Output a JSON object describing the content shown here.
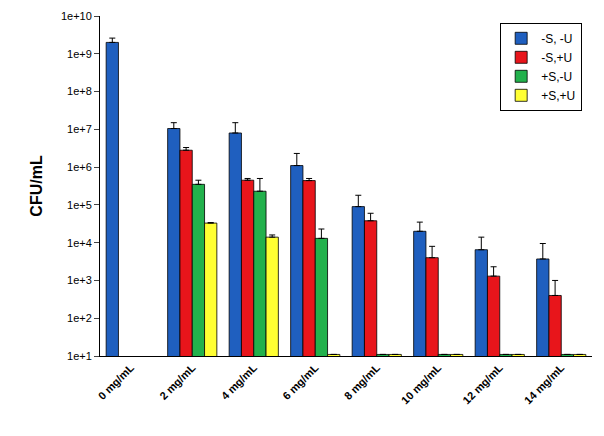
{
  "chart_data": {
    "type": "bar",
    "y_label": "CFU/mL",
    "categories": [
      "0 mg/mL",
      "2 mg/mL",
      "4 mg/mL",
      "6 mg/mL",
      "8 mg/mL",
      "10 mg/mL",
      "12 mg/mL",
      "14 mg/mL"
    ],
    "series": [
      {
        "name": "-S, -U",
        "color": "#1f5fbf",
        "values": [
          2000000000,
          10500000,
          8000000,
          1100000,
          90000,
          20000,
          6500,
          3700
        ],
        "errors": [
          600000000,
          4500000,
          7000000,
          1200000,
          90000,
          15000,
          7500,
          5800
        ]
      },
      {
        "name": "-S,+U",
        "color": "#e8151b",
        "values": [
          null,
          2800000,
          450000,
          440000,
          38000,
          4000,
          1300,
          400
        ],
        "errors": [
          null,
          500000,
          50000,
          60000,
          22000,
          4000,
          1000,
          600
        ]
      },
      {
        "name": "+S,-U",
        "color": "#22b14c",
        "values": [
          null,
          350000,
          230000,
          13000,
          11,
          11,
          11,
          11
        ],
        "errors": [
          null,
          100000,
          270000,
          10000,
          0,
          0,
          0,
          0
        ]
      },
      {
        "name": "+S,+U",
        "color": "#ffff33",
        "values": [
          null,
          33000,
          14000,
          11,
          11,
          11,
          11,
          11
        ],
        "errors": [
          null,
          1000,
          2000,
          0,
          0,
          0,
          0,
          0
        ]
      }
    ],
    "log": "y",
    "ylim": [
      10,
      10000000000
    ],
    "yticks": [
      {
        "value": 10,
        "label": "1e+1"
      },
      {
        "value": 100,
        "label": "1e+2"
      },
      {
        "value": 1000,
        "label": "1e+3"
      },
      {
        "value": 10000,
        "label": "1e+4"
      },
      {
        "value": 100000,
        "label": "1e+5"
      },
      {
        "value": 1000000,
        "label": "1e+6"
      },
      {
        "value": 10000000,
        "label": "1e+7"
      },
      {
        "value": 100000000,
        "label": "1e+8"
      },
      {
        "value": 1000000000,
        "label": "1e+9"
      },
      {
        "value": 10000000000,
        "label": "1e+10"
      }
    ],
    "grid": false,
    "legend": "upper right"
  }
}
